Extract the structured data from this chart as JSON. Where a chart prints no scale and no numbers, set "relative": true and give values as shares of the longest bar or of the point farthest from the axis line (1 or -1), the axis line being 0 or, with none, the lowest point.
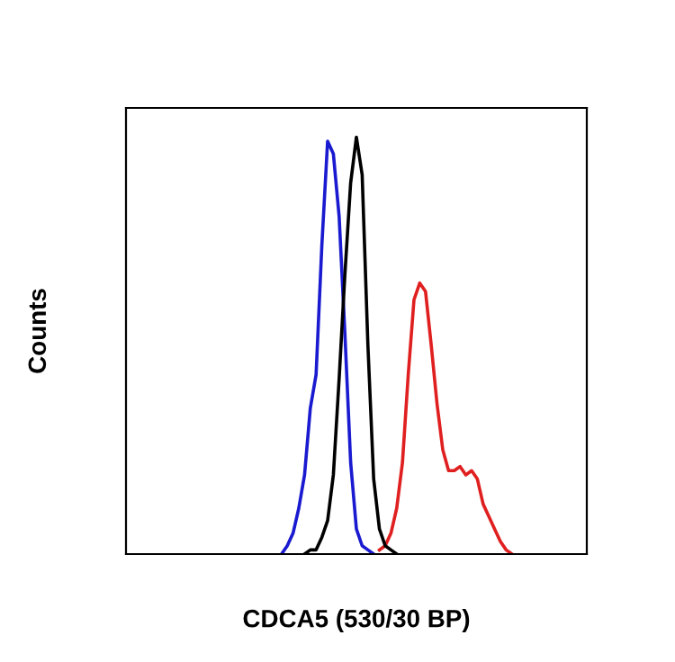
{
  "chart_data": {
    "type": "line",
    "relative": true,
    "ylabel": "Counts",
    "xlabel": "CDCA5 (530/30 BP)",
    "tick_labels": false,
    "legend": false,
    "marker": "none",
    "line_style": "solid",
    "categories": [
      null,
      null,
      null,
      null,
      null,
      null,
      null,
      null,
      null,
      null,
      null,
      null,
      null,
      null,
      null,
      null,
      null,
      null,
      null,
      null,
      null,
      null,
      null,
      null,
      null,
      null,
      null,
      null,
      null,
      null,
      null,
      null,
      null,
      null,
      null,
      null,
      null,
      null,
      null,
      null,
      null,
      null,
      null,
      null,
      null,
      null,
      null,
      null,
      null,
      null,
      null,
      null,
      null,
      null,
      null,
      null,
      null,
      null,
      null,
      null,
      null,
      null,
      null,
      null,
      null,
      null,
      null,
      null,
      null,
      null,
      null,
      null,
      null,
      null,
      null,
      null,
      null,
      null,
      null,
      null,
      null
    ],
    "series": [
      {
        "color": "#e02020",
        "values": [
          null,
          null,
          null,
          null,
          null,
          null,
          null,
          null,
          null,
          null,
          null,
          null,
          null,
          null,
          null,
          null,
          null,
          null,
          null,
          null,
          null,
          null,
          null,
          null,
          null,
          null,
          null,
          null,
          null,
          null,
          null,
          null,
          null,
          null,
          null,
          null,
          null,
          null,
          null,
          null,
          null,
          null,
          null,
          null,
          0.01,
          0.02,
          0.05,
          0.11,
          0.22,
          0.43,
          0.61,
          0.65,
          0.63,
          0.5,
          0.36,
          0.25,
          0.2,
          0.2,
          0.21,
          0.19,
          0.2,
          0.18,
          0.12,
          0.09,
          0.06,
          0.03,
          0.01,
          0,
          null,
          null,
          null,
          null,
          null,
          null,
          null,
          null,
          null,
          null,
          null,
          null,
          null
        ]
      },
      {
        "color": "#1a1ad0",
        "values": [
          null,
          null,
          null,
          null,
          null,
          null,
          null,
          null,
          null,
          null,
          null,
          null,
          null,
          null,
          null,
          null,
          null,
          null,
          null,
          null,
          null,
          null,
          null,
          null,
          null,
          null,
          null,
          0,
          0.02,
          0.05,
          0.11,
          0.19,
          0.35,
          0.43,
          0.74,
          0.99,
          0.96,
          0.81,
          0.53,
          0.22,
          0.06,
          0.02,
          0.01,
          0,
          null,
          null,
          null,
          null,
          null,
          null,
          null,
          null,
          null,
          null,
          null,
          null,
          null,
          null,
          null,
          null,
          null,
          null,
          null,
          null,
          null,
          null,
          null,
          null,
          null,
          null,
          null,
          null,
          null,
          null,
          null,
          null,
          null,
          null,
          null,
          null,
          null
        ]
      },
      {
        "color": "#000000",
        "values": [
          null,
          null,
          null,
          null,
          null,
          null,
          null,
          null,
          null,
          null,
          null,
          null,
          null,
          null,
          null,
          null,
          null,
          null,
          null,
          null,
          null,
          null,
          null,
          null,
          null,
          null,
          null,
          null,
          null,
          null,
          null,
          0,
          0.01,
          0.01,
          0.04,
          0.08,
          0.19,
          0.42,
          0.67,
          0.89,
          1,
          0.91,
          0.5,
          0.18,
          0.06,
          0.02,
          0.01,
          0,
          null,
          null,
          null,
          null,
          null,
          null,
          null,
          null,
          null,
          null,
          null,
          null,
          null,
          null,
          null,
          null,
          null,
          null,
          null,
          null,
          null,
          null,
          null,
          null,
          null,
          null,
          null,
          null,
          null,
          null,
          null,
          null,
          null
        ]
      }
    ]
  }
}
